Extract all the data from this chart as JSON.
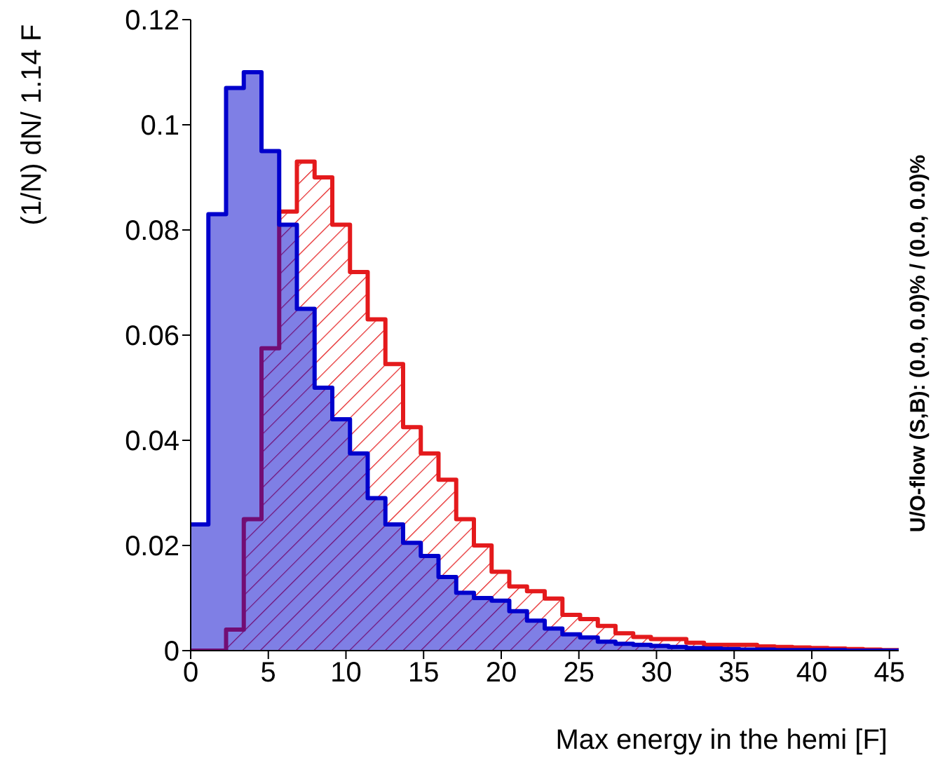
{
  "chart_data": {
    "type": "histogram",
    "xlabel": "Max energy in the hemi  [F]",
    "ylabel": "(1/N) dN/ 1.14 F",
    "annotations": [
      "U/O-flow (S,B): (0.0, 0.0)% / (0.0, 0.0)%"
    ],
    "bins": [
      0,
      1.14,
      2.28,
      3.42,
      4.56,
      5.7,
      6.84,
      7.98,
      9.12,
      10.26,
      11.4,
      12.54,
      13.68,
      14.82,
      15.96,
      17.1,
      18.24,
      19.38,
      20.52,
      21.66,
      22.8,
      23.94,
      25.08,
      26.22,
      27.36,
      28.5,
      29.64,
      30.78,
      31.92,
      33.06,
      34.2,
      35.34,
      36.48,
      37.62,
      38.76,
      39.9,
      41.04,
      42.18,
      43.32,
      44.46,
      45.6
    ],
    "series": [
      {
        "color": "#0000cc",
        "values": [
          0.024,
          0.083,
          0.107,
          0.11,
          0.095,
          0.081,
          0.065,
          0.05,
          0.044,
          0.0375,
          0.029,
          0.024,
          0.0205,
          0.018,
          0.014,
          0.011,
          0.01,
          0.0095,
          0.0075,
          0.0057,
          0.0042,
          0.0031,
          0.0025,
          0.0017,
          0.0013,
          0.0011,
          0.0009,
          0.0007,
          0.0005,
          0.0004,
          0.0003,
          0.0002,
          0.0002,
          0.0001,
          0.0001,
          0.0001,
          0.0001,
          0,
          0,
          0
        ]
      },
      {
        "color": "#e41a1c",
        "values": [
          0,
          0,
          0.004,
          0.025,
          0.0575,
          0.0835,
          0.093,
          0.09,
          0.081,
          0.072,
          0.063,
          0.0545,
          0.0425,
          0.0375,
          0.0325,
          0.025,
          0.02,
          0.015,
          0.0122,
          0.0113,
          0.0099,
          0.0068,
          0.006,
          0.0047,
          0.0033,
          0.0026,
          0.0022,
          0.0022,
          0.0015,
          0.0011,
          0.0011,
          0.0011,
          0.0008,
          0.0007,
          0.0006,
          0.0005,
          0.0004,
          0.0003,
          0.0002,
          0.0001
        ]
      }
    ],
    "xlim": [
      0,
      45.6
    ],
    "xticks": [
      0,
      5,
      10,
      15,
      20,
      25,
      30,
      35,
      40,
      45
    ],
    "ylim": [
      0,
      0.12
    ],
    "yticks": [
      0,
      0.02,
      0.04,
      0.06,
      0.08,
      0.1,
      0.12
    ]
  }
}
